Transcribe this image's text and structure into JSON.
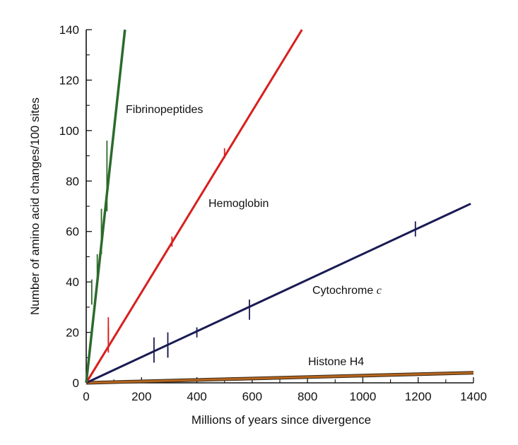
{
  "chart_data": {
    "type": "line",
    "title": "",
    "xlabel": "Millions of years since divergence",
    "ylabel": "Number of amino acid changes/100 sites",
    "xlim": [
      0,
      1400
    ],
    "ylim": [
      0,
      140
    ],
    "x_ticks": [
      "0",
      "200",
      "400",
      "600",
      "800",
      "1000",
      "1200",
      "1400"
    ],
    "y_ticks": [
      "0",
      "20",
      "40",
      "60",
      "80",
      "100",
      "120",
      "140"
    ],
    "grid": false,
    "legend": "none",
    "series": [
      {
        "name": "Fibrinopeptides",
        "color": "#2c6b2c",
        "line": [
          [
            0,
            0
          ],
          [
            140,
            140
          ]
        ],
        "points": [
          [
            20,
            36,
            5
          ],
          [
            40,
            45,
            6
          ],
          [
            55,
            60,
            9
          ],
          [
            75,
            82,
            14
          ]
        ]
      },
      {
        "name": "Hemoglobin",
        "color": "#d81f1f",
        "line": [
          [
            0,
            0
          ],
          [
            780,
            140
          ]
        ],
        "points": [
          [
            80,
            21,
            5
          ],
          [
            80,
            17,
            5
          ],
          [
            310,
            56,
            2
          ],
          [
            500,
            91,
            2
          ]
        ]
      },
      {
        "name": "Cytochrome c",
        "name_plain": "Cytochrome ",
        "name_italic": "c",
        "color": "#1a1a55",
        "line": [
          [
            0,
            0
          ],
          [
            1390,
            71
          ]
        ],
        "points": [
          [
            245,
            13,
            5
          ],
          [
            295,
            15,
            5
          ],
          [
            295,
            12,
            2
          ],
          [
            400,
            20,
            2
          ],
          [
            590,
            29,
            4
          ],
          [
            1190,
            61,
            3
          ]
        ]
      },
      {
        "name": "Histone H4",
        "color": "#b5651d",
        "line": [
          [
            0,
            0
          ],
          [
            1400,
            4
          ]
        ],
        "points": []
      }
    ]
  }
}
